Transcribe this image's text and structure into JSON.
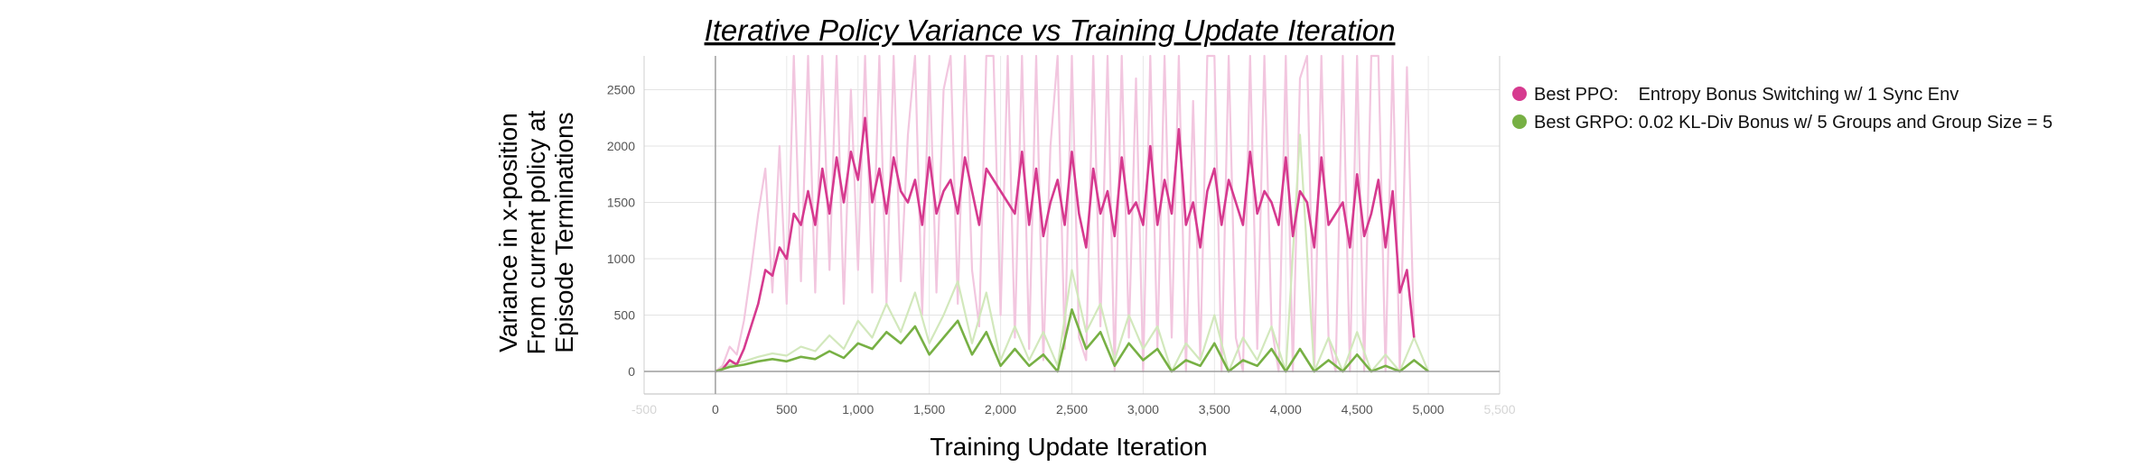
{
  "chart_data": {
    "type": "line",
    "title": "Iterative Policy Variance vs Training Update Iteration",
    "xlabel": "Training Update Iteration",
    "ylabel_lines": [
      "Variance in x-position",
      "From current policy at",
      "Episode Terminations"
    ],
    "xlim": [
      -500,
      5500
    ],
    "ylim": [
      -200,
      2800
    ],
    "x_ticks": [
      {
        "value": -500,
        "label": "-500"
      },
      {
        "value": 0,
        "label": "0"
      },
      {
        "value": 500,
        "label": "500"
      },
      {
        "value": 1000,
        "label": "1,000"
      },
      {
        "value": 1500,
        "label": "1,500"
      },
      {
        "value": 2000,
        "label": "2,000"
      },
      {
        "value": 2500,
        "label": "2,500"
      },
      {
        "value": 3000,
        "label": "3,000"
      },
      {
        "value": 3500,
        "label": "3,500"
      },
      {
        "value": 4000,
        "label": "4,000"
      },
      {
        "value": 4500,
        "label": "4,500"
      },
      {
        "value": 5000,
        "label": "5,000"
      },
      {
        "value": 5500,
        "label": "5,500"
      }
    ],
    "y_ticks": [
      {
        "value": 0,
        "label": "0"
      },
      {
        "value": 500,
        "label": "500"
      },
      {
        "value": 1000,
        "label": "1000"
      },
      {
        "value": 1500,
        "label": "1500"
      },
      {
        "value": 2000,
        "label": "2000"
      },
      {
        "value": 2500,
        "label": "2500"
      }
    ],
    "grid": true,
    "legend_position": "right",
    "series": [
      {
        "name": "Best PPO:    Entropy Bonus Switching w/ 1 Sync Env",
        "color": "#d63a8f",
        "raw_color": "#f2c6df",
        "x": [
          0,
          50,
          100,
          150,
          200,
          250,
          300,
          350,
          400,
          450,
          500,
          550,
          600,
          650,
          700,
          750,
          800,
          850,
          900,
          950,
          1000,
          1050,
          1100,
          1150,
          1200,
          1250,
          1300,
          1350,
          1400,
          1450,
          1500,
          1550,
          1600,
          1650,
          1700,
          1750,
          1800,
          1850,
          1900,
          1950,
          2000,
          2050,
          2100,
          2150,
          2200,
          2250,
          2300,
          2350,
          2400,
          2450,
          2500,
          2550,
          2600,
          2650,
          2700,
          2750,
          2800,
          2850,
          2900,
          2950,
          3000,
          3050,
          3100,
          3150,
          3200,
          3250,
          3300,
          3350,
          3400,
          3450,
          3500,
          3550,
          3600,
          3650,
          3700,
          3750,
          3800,
          3850,
          3900,
          3950,
          4000,
          4050,
          4100,
          4150,
          4200,
          4250,
          4300,
          4350,
          4400,
          4450,
          4500,
          4550,
          4600,
          4650,
          4700,
          4750,
          4800,
          4850,
          4900
        ],
        "smoothed": [
          0,
          20,
          100,
          60,
          200,
          400,
          600,
          900,
          850,
          1100,
          1000,
          1400,
          1300,
          1600,
          1300,
          1800,
          1400,
          1900,
          1500,
          1950,
          1700,
          2250,
          1500,
          1800,
          1400,
          1900,
          1600,
          1500,
          1700,
          1300,
          1900,
          1400,
          1600,
          1700,
          1400,
          1900,
          1600,
          1300,
          1800,
          1700,
          1600,
          1500,
          1400,
          1950,
          1300,
          1800,
          1200,
          1500,
          1700,
          1300,
          1950,
          1400,
          1100,
          1800,
          1400,
          1600,
          1200,
          1900,
          1400,
          1500,
          1300,
          2000,
          1300,
          1700,
          1400,
          2150,
          1300,
          1500,
          1100,
          1600,
          1800,
          1300,
          1700,
          1500,
          1300,
          1950,
          1400,
          1600,
          1500,
          1300,
          1900,
          1200,
          1600,
          1500,
          1100,
          1900,
          1300,
          1400,
          1500,
          1100,
          1750,
          1200,
          1400,
          1700,
          1100,
          1600,
          700,
          900,
          300
        ],
        "raw": [
          0,
          50,
          220,
          150,
          450,
          900,
          1400,
          1800,
          700,
          2000,
          600,
          2800,
          800,
          2800,
          700,
          2800,
          900,
          2800,
          600,
          2500,
          900,
          2800,
          700,
          2800,
          600,
          2800,
          800,
          2100,
          2800,
          500,
          2800,
          700,
          2500,
          2800,
          600,
          2800,
          900,
          400,
          2800,
          2800,
          500,
          2800,
          300,
          2800,
          200,
          2800,
          100,
          2000,
          2800,
          200,
          2800,
          300,
          100,
          2800,
          400,
          2800,
          0,
          2800,
          300,
          2600,
          0,
          2800,
          200,
          2800,
          300,
          2800,
          0,
          2400,
          100,
          2800,
          2800,
          0,
          2800,
          300,
          0,
          2800,
          200,
          2800,
          400,
          0,
          2800,
          0,
          2600,
          2800,
          0,
          2800,
          300,
          0,
          2800,
          0,
          2800,
          0,
          2800,
          2800,
          0,
          2800,
          0,
          2700,
          300
        ]
      },
      {
        "name": "Best GRPO: 0.02 KL-Div Bonus w/ 5 Groups and Group Size = 5",
        "color": "#77b044",
        "raw_color": "#d2e8bc",
        "x": [
          0,
          100,
          200,
          300,
          400,
          500,
          600,
          700,
          800,
          900,
          1000,
          1100,
          1200,
          1300,
          1400,
          1500,
          1600,
          1700,
          1800,
          1900,
          2000,
          2100,
          2200,
          2300,
          2400,
          2500,
          2600,
          2700,
          2800,
          2900,
          3000,
          3100,
          3200,
          3300,
          3400,
          3500,
          3600,
          3700,
          3800,
          3900,
          4000,
          4100,
          4200,
          4300,
          4400,
          4500,
          4600,
          4700,
          4800,
          4900,
          5000
        ],
        "smoothed": [
          0,
          40,
          60,
          90,
          110,
          90,
          130,
          110,
          180,
          120,
          250,
          200,
          350,
          250,
          400,
          150,
          300,
          450,
          150,
          350,
          50,
          200,
          50,
          150,
          0,
          550,
          200,
          350,
          50,
          250,
          100,
          200,
          0,
          100,
          50,
          250,
          0,
          100,
          50,
          200,
          0,
          200,
          0,
          100,
          0,
          150,
          0,
          50,
          0,
          100,
          0
        ],
        "raw": [
          0,
          60,
          90,
          130,
          160,
          140,
          220,
          180,
          320,
          200,
          450,
          300,
          600,
          350,
          700,
          250,
          500,
          800,
          250,
          700,
          100,
          400,
          100,
          350,
          50,
          900,
          350,
          600,
          100,
          500,
          200,
          400,
          0,
          250,
          100,
          500,
          0,
          300,
          100,
          400,
          0,
          2100,
          0,
          300,
          0,
          350,
          0,
          150,
          0,
          300,
          0
        ]
      }
    ]
  }
}
